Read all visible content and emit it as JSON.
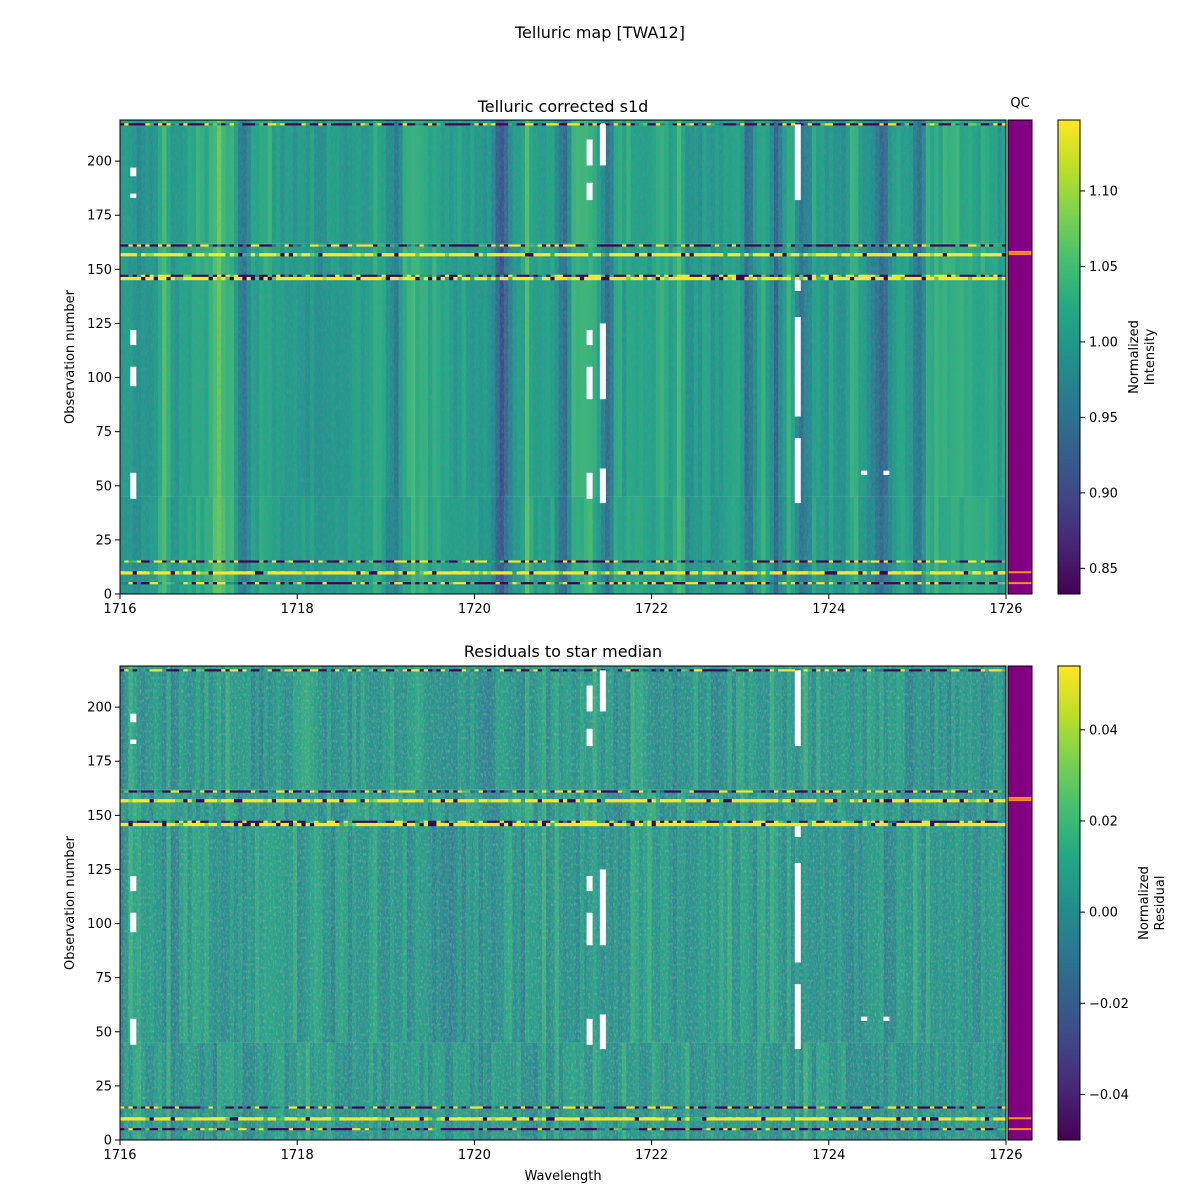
{
  "figure": {
    "title": "Telluric map [TWA12]"
  },
  "chart_data": [
    {
      "type": "heatmap",
      "title": "Telluric corrected s1d",
      "xlabel": "",
      "ylabel": "Observation number",
      "xlim": [
        1716,
        1726
      ],
      "ylim": [
        0,
        219
      ],
      "xticks": [
        "1716",
        "1718",
        "1720",
        "1722",
        "1724",
        "1726"
      ],
      "yticks": [
        "0",
        "25",
        "50",
        "75",
        "100",
        "125",
        "150",
        "175",
        "200"
      ],
      "colormap": "viridis",
      "colorbar": {
        "label_line1": "Normalized",
        "label_line2": "Intensity",
        "range": [
          0.833,
          1.147
        ],
        "ticks": [
          "0.85",
          "0.90",
          "0.95",
          "1.00",
          "1.05",
          "1.10"
        ]
      },
      "absorption_lines": [
        1717.4,
        1719.1,
        1720.3,
        1721.0,
        1721.5,
        1723.1,
        1723.4,
        1723.7,
        1724.6,
        1725.0
      ],
      "bright_regions": [
        1716.5,
        1717.1,
        1720.6,
        1722.1,
        1722.3,
        1724.3
      ],
      "masked_segments": [
        {
          "x": 1716.15,
          "y0": 193,
          "y1": 197
        },
        {
          "x": 1716.15,
          "y0": 183,
          "y1": 185
        },
        {
          "x": 1716.15,
          "y0": 115,
          "y1": 122
        },
        {
          "x": 1716.15,
          "y0": 96,
          "y1": 105
        },
        {
          "x": 1716.15,
          "y0": 44,
          "y1": 56
        },
        {
          "x": 1721.3,
          "y0": 182,
          "y1": 190
        },
        {
          "x": 1721.3,
          "y0": 198,
          "y1": 210
        },
        {
          "x": 1721.3,
          "y0": 115,
          "y1": 122
        },
        {
          "x": 1721.3,
          "y0": 90,
          "y1": 105
        },
        {
          "x": 1721.3,
          "y0": 44,
          "y1": 56
        },
        {
          "x": 1721.45,
          "y0": 198,
          "y1": 217
        },
        {
          "x": 1721.45,
          "y0": 90,
          "y1": 125
        },
        {
          "x": 1721.45,
          "y0": 42,
          "y1": 58
        },
        {
          "x": 1723.65,
          "y0": 182,
          "y1": 217
        },
        {
          "x": 1723.65,
          "y0": 140,
          "y1": 145
        },
        {
          "x": 1723.65,
          "y0": 82,
          "y1": 128
        },
        {
          "x": 1723.65,
          "y0": 42,
          "y1": 72
        },
        {
          "x": 1724.4,
          "y0": 55,
          "y1": 57
        },
        {
          "x": 1724.65,
          "y0": 55,
          "y1": 57
        }
      ],
      "noisy_rows": [
        217,
        161,
        147,
        15,
        10,
        5
      ],
      "saturated_rows": [
        157,
        146,
        10
      ],
      "qc": {
        "label": "QC",
        "color": "#800080",
        "flag_color": "#ff8c1a",
        "flagged_rows": [
          158,
          157,
          10,
          5
        ]
      }
    },
    {
      "type": "heatmap",
      "title": "Residuals to star median",
      "xlabel": "Wavelength",
      "ylabel": "Observation number",
      "xlim": [
        1716,
        1726
      ],
      "ylim": [
        0,
        219
      ],
      "xticks": [
        "1716",
        "1718",
        "1720",
        "1722",
        "1724",
        "1726"
      ],
      "yticks": [
        "0",
        "25",
        "50",
        "75",
        "100",
        "125",
        "150",
        "175",
        "200"
      ],
      "colormap": "viridis",
      "colorbar": {
        "label_line1": "Normalized",
        "label_line2": "Residual",
        "range": [
          -0.05,
          0.054
        ],
        "ticks": [
          "−0.04",
          "−0.02",
          "0.00",
          "0.02",
          "0.04"
        ]
      },
      "qc": {
        "label": "",
        "color": "#800080",
        "flag_color": "#ff8c1a",
        "flagged_rows": [
          158,
          157,
          10,
          5
        ]
      }
    }
  ]
}
